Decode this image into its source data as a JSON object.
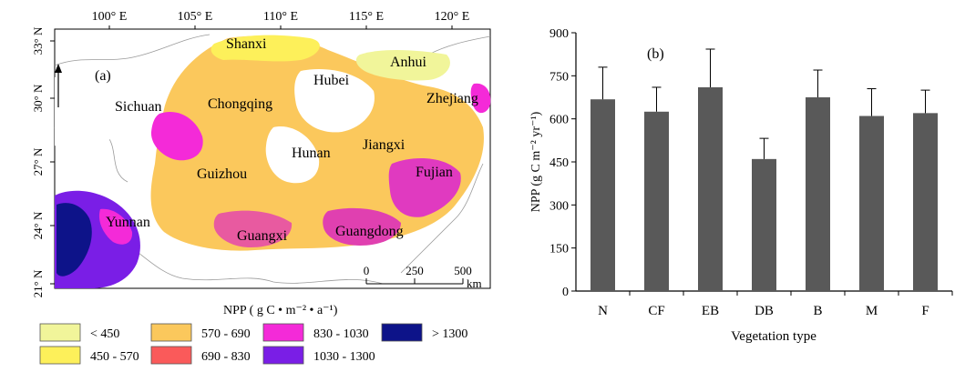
{
  "map_panel": {
    "panel_label": "(a)",
    "longitude_ticks": [
      "100° E",
      "105° E",
      "110° E",
      "115° E",
      "120° E"
    ],
    "latitude_ticks": [
      "33° N",
      "30° N",
      "27° N",
      "24° N",
      "21° N"
    ],
    "provinces": [
      "Shanxi",
      "Anhui",
      "Hubei",
      "Sichuan",
      "Chongqing",
      "Zhejiang",
      "Hunan",
      "Jiangxi",
      "Guizhou",
      "Fujian",
      "Yunnan",
      "Guangxi",
      "Guangdong"
    ],
    "scale_bar": {
      "ticks": [
        "0",
        "250",
        "500"
      ],
      "unit": "km"
    },
    "legend_title": "NPP ( g C • m⁻² • a⁻¹)",
    "legend": [
      {
        "label": "< 450",
        "color": "#f1f59a"
      },
      {
        "label": "570 - 690",
        "color": "#fbc85c"
      },
      {
        "label": "830 - 1030",
        "color": "#f42ad8"
      },
      {
        "label": "> 1300",
        "color": "#0d1389"
      },
      {
        "label": "450 - 570",
        "color": "#fdf05a"
      },
      {
        "label": "690 - 830",
        "color": "#fa5a5a"
      },
      {
        "label": "1030 - 1300",
        "color": "#7a1ee6"
      }
    ]
  },
  "chart_data": {
    "type": "bar",
    "panel_label": "(b)",
    "categories": [
      "N",
      "CF",
      "EB",
      "DB",
      "B",
      "M",
      "F"
    ],
    "values": [
      668,
      625,
      710,
      460,
      675,
      610,
      620
    ],
    "errors": [
      112,
      85,
      133,
      72,
      95,
      95,
      80
    ],
    "xlabel": "Vegetation type",
    "ylabel": "NPP (g C m⁻² yr⁻¹)",
    "ylim": [
      0,
      900
    ],
    "yticks": [
      0,
      150,
      300,
      450,
      600,
      750,
      900
    ],
    "bar_color": "#595959",
    "grid": false,
    "legend": "none"
  }
}
